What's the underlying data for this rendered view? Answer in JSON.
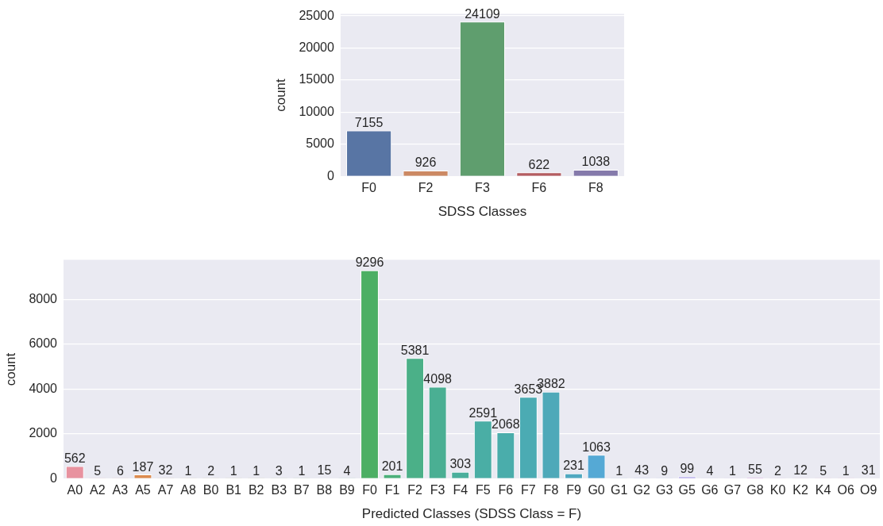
{
  "chart_data": [
    {
      "type": "bar",
      "xlabel": "SDSS Classes",
      "ylabel": "count",
      "categories": [
        "F0",
        "F2",
        "F3",
        "F6",
        "F8"
      ],
      "values": [
        7155,
        926,
        24109,
        622,
        1038
      ],
      "colors": [
        "#5875a4",
        "#cc8963",
        "#5f9e6e",
        "#b55d60",
        "#857aab"
      ],
      "ylim": [
        0,
        25314
      ],
      "yticks": [
        0,
        5000,
        10000,
        15000,
        20000,
        25000
      ],
      "grid": "y",
      "data_labels": true
    },
    {
      "type": "bar",
      "xlabel": "Predicted Classes (SDSS Class = F)",
      "ylabel": "count",
      "categories": [
        "A0",
        "A2",
        "A3",
        "A5",
        "A7",
        "A8",
        "B0",
        "B1",
        "B2",
        "B3",
        "B7",
        "B8",
        "B9",
        "F0",
        "F1",
        "F2",
        "F3",
        "F4",
        "F5",
        "F6",
        "F7",
        "F8",
        "F9",
        "G0",
        "G1",
        "G2",
        "G3",
        "G5",
        "G6",
        "G7",
        "G8",
        "K0",
        "K2",
        "K4",
        "O6",
        "O9"
      ],
      "values": [
        562,
        5,
        6,
        187,
        32,
        1,
        2,
        1,
        1,
        3,
        1,
        15,
        4,
        9296,
        201,
        5381,
        4098,
        303,
        2591,
        2068,
        3653,
        3882,
        231,
        1063,
        1,
        43,
        9,
        99,
        4,
        1,
        55,
        2,
        12,
        5,
        1,
        31
      ],
      "colors": [
        "#e8929f",
        "#e59384",
        "#e39270",
        "#dc8b4f",
        "#cf9146",
        "#c39a46",
        "#b7a146",
        "#aaa646",
        "#9cab46",
        "#8aae47",
        "#72b147",
        "#5ab04e",
        "#4cb05c",
        "#4caf64",
        "#4bb07a",
        "#4bb088",
        "#4aaf93",
        "#4aaf9c",
        "#4aaea5",
        "#4aadab",
        "#4babb3",
        "#4ea9b9",
        "#50a8c0",
        "#55a9d5",
        "#68a3df",
        "#7e9de6",
        "#9399ea",
        "#a69aea",
        "#b69ae8",
        "#c498e3",
        "#d095d9",
        "#d994cd",
        "#df93c0",
        "#e393b4",
        "#e693aa",
        "#e892a3"
      ],
      "ylim": [
        0,
        9761
      ],
      "yticks": [
        0,
        2000,
        4000,
        6000,
        8000
      ],
      "grid": "y",
      "data_labels": true
    }
  ]
}
